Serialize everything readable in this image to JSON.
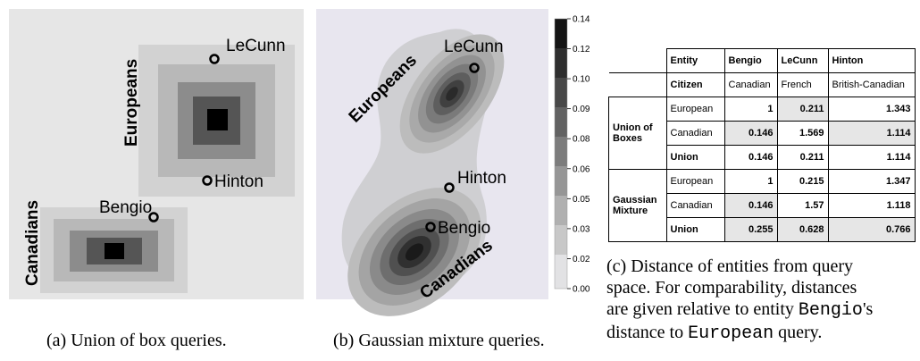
{
  "panel_a": {
    "labels": {
      "europeans": "Europeans",
      "canadians": "Canadians"
    },
    "entities": {
      "lecunn": "LeCunn",
      "hinton": "Hinton",
      "bengio": "Bengio"
    },
    "caption": "(a) Union of box queries."
  },
  "panel_b": {
    "labels": {
      "europeans": "Europeans",
      "canadians": "Canadians"
    },
    "entities": {
      "lecunn": "LeCunn",
      "hinton": "Hinton",
      "bengio": "Bengio"
    },
    "colorbar_ticks": [
      "0.14",
      "0.12",
      "0.10",
      "0.09",
      "0.08",
      "0.06",
      "0.05",
      "0.03",
      "0.02",
      "0.00"
    ],
    "caption": "(b) Gaussian mixture queries."
  },
  "table": {
    "header": {
      "entity": "Entity",
      "citizen": "Citizen"
    },
    "entities": [
      "Bengio",
      "LeCunn",
      "Hinton"
    ],
    "citizenship": [
      "Canadian",
      "French",
      "British-Canadian"
    ],
    "groups": [
      {
        "name_line1": "Union of",
        "name_line2": "Boxes",
        "rows": [
          {
            "label": "European",
            "values": [
              "1",
              "0.211",
              "1.343"
            ]
          },
          {
            "label": "Canadian",
            "values": [
              "0.146",
              "1.569",
              "1.114"
            ]
          },
          {
            "label": "Union",
            "values": [
              "0.146",
              "0.211",
              "1.114"
            ]
          }
        ]
      },
      {
        "name_line1": "Gaussian",
        "name_line2": "Mixture",
        "rows": [
          {
            "label": "European",
            "values": [
              "1",
              "0.215",
              "1.347"
            ]
          },
          {
            "label": "Canadian",
            "values": [
              "0.146",
              "1.57",
              "1.118"
            ]
          },
          {
            "label": "Union",
            "values": [
              "0.255",
              "0.628",
              "0.766"
            ]
          }
        ]
      }
    ]
  },
  "caption_c": {
    "line1": "(c) Distance of entities from query",
    "line2": "space. For comparability, distances",
    "line3_pre": "are given relative to entity ",
    "line3_code": "Bengio",
    "line3_post": "'s",
    "line4_pre": "distance to ",
    "line4_code": "European",
    "line4_post": " query."
  }
}
